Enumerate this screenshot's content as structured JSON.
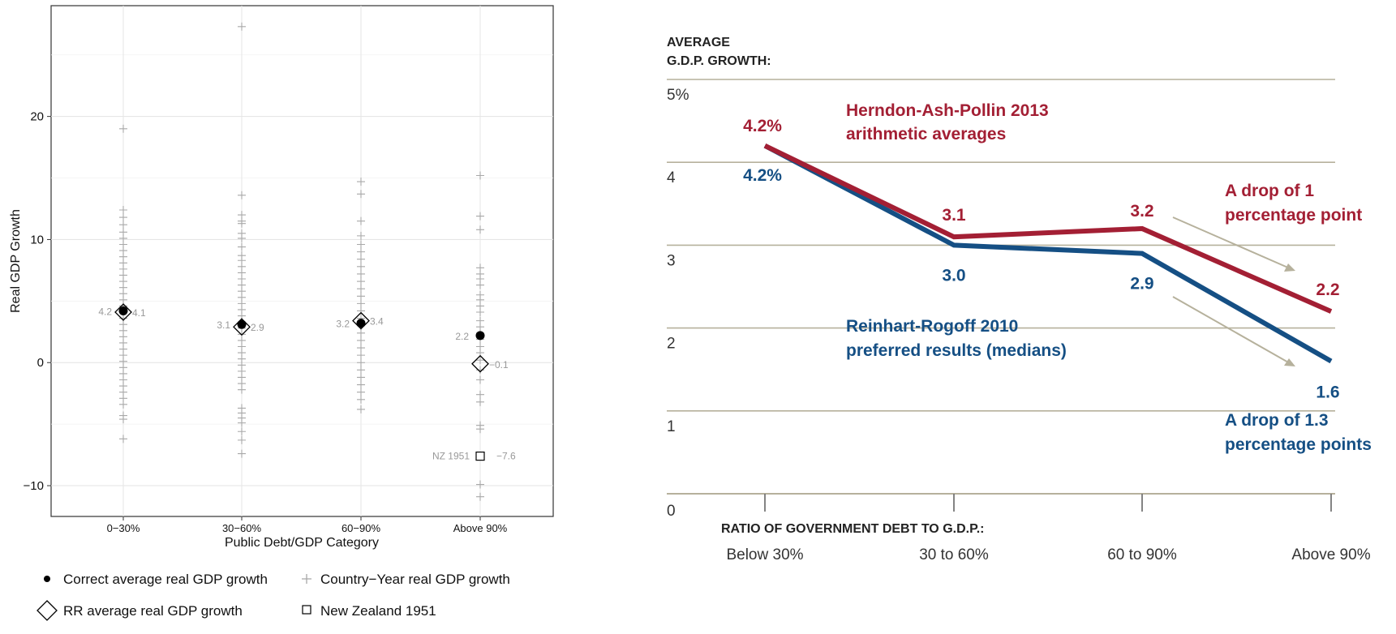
{
  "colors": {
    "red": "#a31f34",
    "blue": "#154f84",
    "grid_tan": "#b6b19c",
    "country_plus": "#a8a8a8"
  },
  "chart_data": [
    {
      "type": "scatter",
      "xlabel": "Public Debt/GDP Category",
      "ylabel": "Real GDP Growth",
      "categories": [
        "0−30%",
        "30−60%",
        "60−90%",
        "Above 90%"
      ],
      "ylim": [
        -12.5,
        29
      ],
      "yticks": [
        -10,
        0,
        10,
        20
      ],
      "ytick_labels": [
        "−10",
        "0",
        "10",
        "20"
      ],
      "grid": true,
      "correct_avg": [
        4.2,
        3.1,
        3.2,
        2.2
      ],
      "correct_avg_labels": [
        "4.2",
        "3.1",
        "3.2",
        "2.2"
      ],
      "rr_avg": [
        4.1,
        2.9,
        3.4,
        -0.1
      ],
      "rr_avg_labels": [
        "4.1",
        "2.9",
        "3.4",
        "−0.1"
      ],
      "nz_1951": {
        "label": "NZ 1951",
        "value": -7.6,
        "value_label": "−7.6"
      },
      "country_years": [
        [
          19,
          12.4,
          11.8,
          11.2,
          10.6,
          10.1,
          9.6,
          9.1,
          8.6,
          8.1,
          7.6,
          7.1,
          6.6,
          6.1,
          5.6,
          5.1,
          4.6,
          4.1,
          3.6,
          3.1,
          2.6,
          2.1,
          1.6,
          1.1,
          0.6,
          0.1,
          -0.4,
          -0.9,
          -1.4,
          -1.9,
          -2.4,
          -2.9,
          -3.4,
          -4.3,
          -4.6,
          -6.2
        ],
        [
          27.3,
          13.6,
          12,
          11.5,
          11.3,
          10.5,
          10.1,
          9.4,
          8.7,
          8.3,
          7.8,
          7.3,
          6.8,
          6.3,
          5.8,
          5.3,
          4.8,
          4.3,
          3.8,
          3.3,
          2.8,
          2.3,
          1.8,
          1.3,
          0.8,
          0.3,
          -0.2,
          -0.7,
          -1.2,
          -1.7,
          -2.2,
          -3.7,
          -4.1,
          -4.5,
          -4.9,
          -5.6,
          -6.3,
          -7.4
        ],
        [
          14.7,
          13.7,
          11.5,
          10.3,
          9.6,
          9,
          8.4,
          7.8,
          7.2,
          6.6,
          6,
          5.4,
          4.8,
          4.2,
          3.6,
          3,
          2.4,
          1.8,
          1.2,
          0.6,
          0,
          -0.6,
          -1.2,
          -1.8,
          -2.4,
          -3,
          -3.8
        ],
        [
          15.2,
          11.9,
          10.8,
          7.7,
          7.2,
          6.8,
          6.3,
          5.5,
          5.1,
          4.6,
          4.1,
          3.4,
          2.9,
          2.4,
          1.9,
          1.3,
          0.8,
          0.2,
          -0.6,
          -1.4,
          -2.6,
          -3.2,
          -5.1,
          -5.4,
          -9.9,
          -10.9
        ]
      ]
    },
    {
      "type": "line",
      "ytitle_lines": [
        "AVERAGE",
        "G.D.P. GROWTH:"
      ],
      "yticks": [
        0,
        1,
        2,
        3,
        4,
        5
      ],
      "ytick_labels": [
        "0",
        "1",
        "2",
        "3",
        "4",
        "5%"
      ],
      "ylim": [
        0,
        5
      ],
      "xtitle": "RATIO OF GOVERNMENT DEBT TO G.D.P.:",
      "categories": [
        "Below 30%",
        "30 to 60%",
        "60 to 90%",
        "Above 90%"
      ],
      "series": [
        {
          "name_lines": [
            "Herndon-Ash-Pollin 2013",
            "arithmetic averages"
          ],
          "values": [
            4.2,
            3.1,
            3.2,
            2.2
          ],
          "labels": [
            "4.2%",
            "3.1",
            "3.2",
            "2.2"
          ]
        },
        {
          "name_lines": [
            "Reinhart-Rogoff 2010",
            "preferred results (medians)"
          ],
          "values": [
            4.2,
            3.0,
            2.9,
            1.6
          ],
          "labels": [
            "4.2%",
            "3.0",
            "2.9",
            "1.6"
          ]
        }
      ],
      "annotations": [
        {
          "lines": [
            "A drop of 1",
            "percentage point"
          ]
        },
        {
          "lines": [
            "A drop of 1.3",
            "percentage points"
          ]
        }
      ]
    }
  ],
  "legend": {
    "correct": "Correct average real GDP growth",
    "country": "Country−Year real GDP growth",
    "rr": "RR average real GDP growth",
    "nz": "New Zealand 1951"
  }
}
